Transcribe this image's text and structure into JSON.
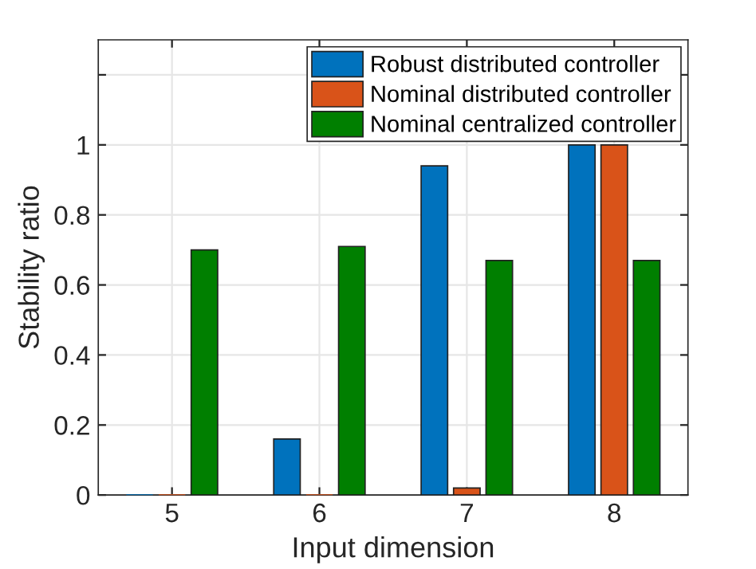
{
  "chart_data": {
    "type": "bar",
    "xlabel": "Input dimension",
    "ylabel": "Stability ratio",
    "categories": [
      "5",
      "6",
      "7",
      "8"
    ],
    "series": [
      {
        "name": "Robust distributed controller",
        "color": "#0072bd",
        "values": [
          0,
          0.16,
          0.94,
          1
        ]
      },
      {
        "name": "Nominal distributed controller",
        "color": "#d95319",
        "values": [
          0,
          0,
          0.02,
          1
        ]
      },
      {
        "name": "Nominal centralized controller",
        "color": "#007f00",
        "values": [
          0.7,
          0.71,
          0.67,
          0.67
        ]
      }
    ],
    "ylim": [
      0,
      1.3
    ],
    "yticks": [
      0,
      0.2,
      0.4,
      0.6,
      0.8,
      1,
      {
        "value": 1.2,
        "label": null
      }
    ],
    "grid": true,
    "legend": "top right"
  }
}
